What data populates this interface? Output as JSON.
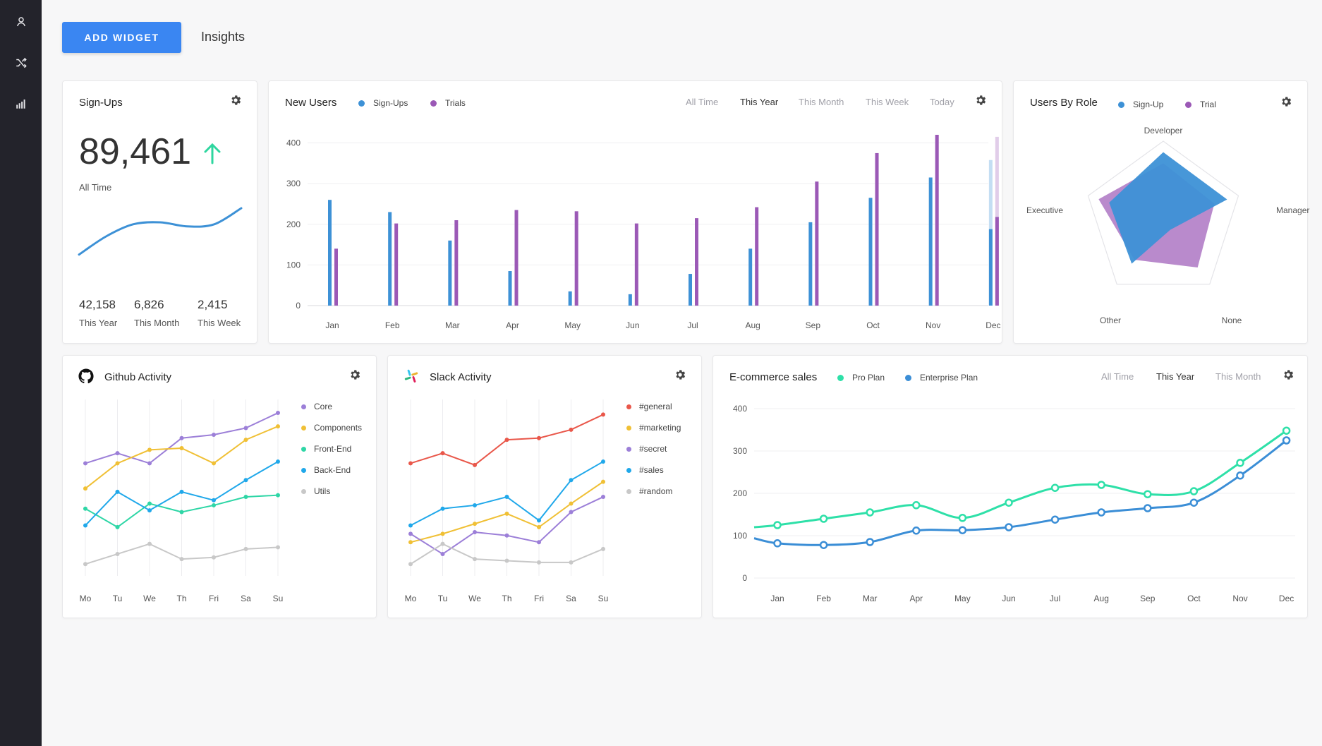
{
  "header": {
    "add_widget_label": "ADD WIDGET",
    "tab_label": "Insights"
  },
  "sidebar": {
    "icons": [
      "user-icon",
      "shuffle-icon",
      "bar-chart-icon"
    ]
  },
  "colors": {
    "accent": "#3a86f2",
    "signups": "#3d91d6",
    "trials": "#9b59b6",
    "up_arrow": "#2ed69f",
    "pro": "#2ee0a8",
    "enterprise": "#3b8ed6"
  },
  "signups": {
    "title": "Sign-Ups",
    "value": "89,461",
    "value_label": "All Time",
    "stats": [
      {
        "value": "42,158",
        "label": "This Year"
      },
      {
        "value": "6,826",
        "label": "This Month"
      },
      {
        "value": "2,415",
        "label": "This Week"
      }
    ]
  },
  "new_users": {
    "title": "New Users",
    "legend": [
      "Sign-Ups",
      "Trials"
    ],
    "filters": [
      "All Time",
      "This Year",
      "This Month",
      "This Week",
      "Today"
    ],
    "active_filter": "This Year"
  },
  "users_by_role": {
    "title": "Users By Role",
    "legend": [
      "Sign-Up",
      "Trial"
    ]
  },
  "github": {
    "title": "Github Activity"
  },
  "slack": {
    "title": "Slack Activity"
  },
  "ecommerce": {
    "title": "E-commerce sales",
    "legend": [
      "Pro Plan",
      "Enterprise Plan"
    ],
    "filters": [
      "All Time",
      "This Year",
      "This Month"
    ],
    "active_filter": "This Year"
  },
  "chart_data": [
    {
      "id": "signups-sparkline",
      "type": "line",
      "x": [
        0,
        1,
        2,
        3,
        4,
        5,
        6
      ],
      "values": [
        10,
        28,
        40,
        42,
        38,
        40,
        56
      ],
      "ylim": [
        0,
        70
      ]
    },
    {
      "id": "new-users",
      "type": "bar",
      "categories": [
        "Jan",
        "Feb",
        "Mar",
        "Apr",
        "May",
        "Jun",
        "Jul",
        "Aug",
        "Sep",
        "Oct",
        "Nov",
        "Dec"
      ],
      "series": [
        {
          "name": "Sign-Ups",
          "color": "#3d91d6",
          "values": [
            260,
            230,
            160,
            85,
            35,
            28,
            78,
            140,
            205,
            265,
            315,
            188
          ]
        },
        {
          "name": "Trials",
          "color": "#9b59b6",
          "values": [
            140,
            202,
            210,
            235,
            232,
            202,
            215,
            242,
            305,
            375,
            420,
            218
          ]
        }
      ],
      "ghost": {
        "Sign-Ups": 358,
        "Trials": 415
      },
      "yticks": [
        0,
        100,
        200,
        300,
        400
      ],
      "ylim": [
        0,
        420
      ]
    },
    {
      "id": "users-by-role",
      "type": "radar",
      "axes": [
        "Developer",
        "Manager",
        "None",
        "Other",
        "Executive"
      ],
      "series": [
        {
          "name": "Sign-Up",
          "color": "#3d91d6",
          "values": [
            0.86,
            0.85,
            0.15,
            0.68,
            0.72
          ]
        },
        {
          "name": "Trial",
          "color": "#9b59b6",
          "values": [
            0.72,
            0.68,
            0.74,
            0.62,
            0.86
          ]
        }
      ]
    },
    {
      "id": "github-activity",
      "type": "line",
      "categories": [
        "Mo",
        "Tu",
        "We",
        "Th",
        "Fri",
        "Sa",
        "Su"
      ],
      "series": [
        {
          "name": "Core",
          "color": "#9c7fd8",
          "values": [
            0.62,
            0.68,
            0.62,
            0.77,
            0.79,
            0.83,
            0.92
          ]
        },
        {
          "name": "Components",
          "color": "#f0c035",
          "values": [
            0.47,
            0.62,
            0.7,
            0.71,
            0.62,
            0.76,
            0.84
          ]
        },
        {
          "name": "Front-End",
          "color": "#2ed6a6",
          "values": [
            0.35,
            0.24,
            0.38,
            0.33,
            0.37,
            0.42,
            0.43
          ]
        },
        {
          "name": "Back-End",
          "color": "#20a8ea",
          "values": [
            0.25,
            0.45,
            0.34,
            0.45,
            0.4,
            0.52,
            0.63
          ]
        },
        {
          "name": "Utils",
          "color": "#c8c8c8",
          "values": [
            0.02,
            0.08,
            0.14,
            0.05,
            0.06,
            0.11,
            0.12
          ]
        }
      ],
      "ylim": [
        0,
        1
      ]
    },
    {
      "id": "slack-activity",
      "type": "line",
      "categories": [
        "Mo",
        "Tu",
        "We",
        "Th",
        "Fri",
        "Sa",
        "Su"
      ],
      "series": [
        {
          "name": "#general",
          "color": "#e9574a",
          "values": [
            0.62,
            0.68,
            0.61,
            0.76,
            0.77,
            0.82,
            0.91
          ]
        },
        {
          "name": "#marketing",
          "color": "#f0c035",
          "values": [
            0.15,
            0.2,
            0.26,
            0.32,
            0.24,
            0.38,
            0.51
          ]
        },
        {
          "name": "#secret",
          "color": "#9c7fd8",
          "values": [
            0.2,
            0.08,
            0.21,
            0.19,
            0.15,
            0.33,
            0.42
          ]
        },
        {
          "name": "#sales",
          "color": "#20a8ea",
          "values": [
            0.25,
            0.35,
            0.37,
            0.42,
            0.28,
            0.52,
            0.63
          ]
        },
        {
          "name": "#random",
          "color": "#c8c8c8",
          "values": [
            0.02,
            0.14,
            0.05,
            0.04,
            0.03,
            0.03,
            0.11
          ]
        }
      ],
      "ylim": [
        0,
        1
      ]
    },
    {
      "id": "ecommerce-sales",
      "type": "line",
      "categories": [
        "Jan",
        "Feb",
        "Mar",
        "Apr",
        "May",
        "Jun",
        "Jul",
        "Aug",
        "Sep",
        "Oct",
        "Nov",
        "Dec"
      ],
      "series": [
        {
          "name": "Pro Plan",
          "color": "#2ee0a8",
          "values": [
            125,
            140,
            155,
            172,
            142,
            178,
            213,
            220,
            198,
            205,
            272,
            348
          ]
        },
        {
          "name": "Enterprise Plan",
          "color": "#3b8ed6",
          "values": [
            82,
            78,
            85,
            112,
            113,
            120,
            138,
            155,
            165,
            178,
            242,
            325
          ]
        }
      ],
      "yticks": [
        0,
        100,
        200,
        300,
        400
      ],
      "ylim": [
        0,
        400
      ]
    }
  ]
}
